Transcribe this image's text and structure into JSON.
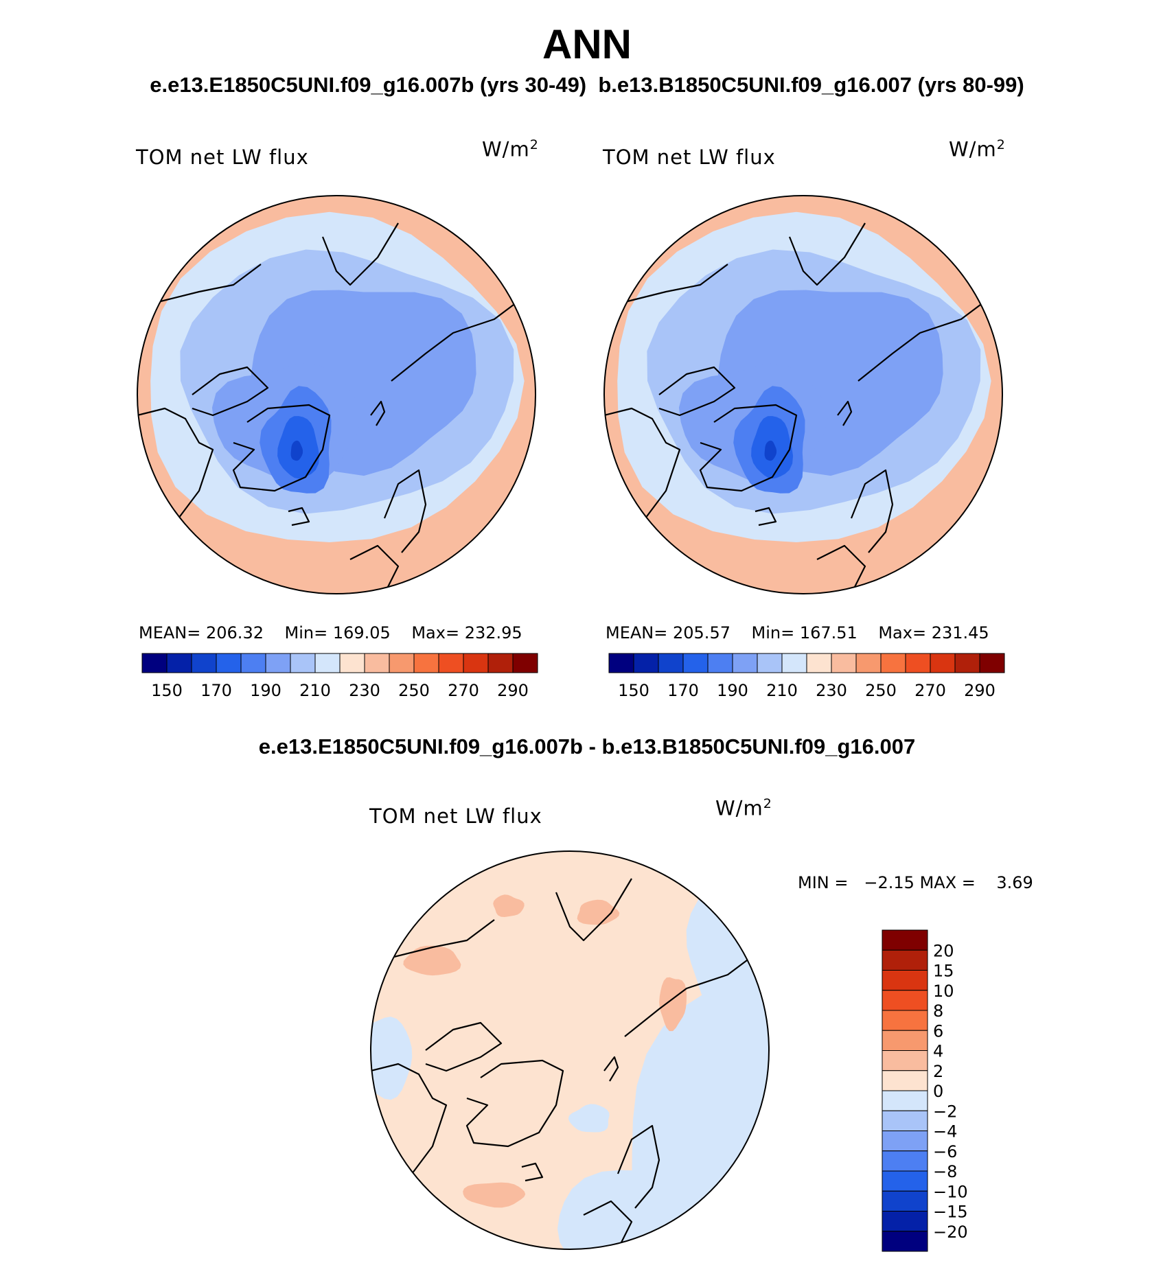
{
  "title": "ANN",
  "top_subtitle_left": "e.e13.E1850C5UNI.f09_g16.007b (yrs 30-49)",
  "top_subtitle_right": "b.e13.B1850C5UNI.f09_g16.007 (yrs 80-99)",
  "diff_subtitle": "e.e13.E1850C5UNI.f09_g16.007b - b.e13.B1850C5UNI.f09_g16.007",
  "colors": {
    "abs_scale": [
      "#00007f",
      "#0421a8",
      "#1043cc",
      "#2462ea",
      "#4d7ff2",
      "#7ea1f5",
      "#a9c4f8",
      "#d4e6fb",
      "#fde3d0",
      "#f9bc9f",
      "#f7996e",
      "#f7733f",
      "#ee4f22",
      "#d93511",
      "#b0200a",
      "#7f0000"
    ],
    "diff_scale": [
      "#00007f",
      "#0421a8",
      "#1043cc",
      "#2462ea",
      "#4d7ff2",
      "#7ea1f5",
      "#a9c4f8",
      "#d4e6fb",
      "#fde3d0",
      "#f9bc9f",
      "#f7996e",
      "#f7733f",
      "#ee4f22",
      "#d93511",
      "#b0200a",
      "#7f0000"
    ],
    "coast": "#000000"
  },
  "chart_data": [
    {
      "type": "heatmap",
      "title": "TOM net LW flux",
      "units_base": "W/m",
      "units_exp": "2",
      "projection": "north polar stereographic",
      "mean_label": "MEAN=",
      "mean": "206.32",
      "min_label": "Min=",
      "min": "169.05",
      "max_label": "Max=",
      "max": "232.95",
      "contour_levels": [
        150,
        160,
        170,
        180,
        190,
        200,
        210,
        220,
        230,
        240,
        250,
        260,
        270,
        280,
        290
      ],
      "colorbar_ticks": [
        "150",
        "170",
        "190",
        "210",
        "230",
        "250",
        "270",
        "290"
      ]
    },
    {
      "type": "heatmap",
      "title": "TOM net LW flux",
      "units_base": "W/m",
      "units_exp": "2",
      "projection": "north polar stereographic",
      "mean_label": "MEAN=",
      "mean": "205.57",
      "min_label": "Min=",
      "min": "167.51",
      "max_label": "Max=",
      "max": "231.45",
      "contour_levels": [
        150,
        160,
        170,
        180,
        190,
        200,
        210,
        220,
        230,
        240,
        250,
        260,
        270,
        280,
        290
      ],
      "colorbar_ticks": [
        "150",
        "170",
        "190",
        "210",
        "230",
        "250",
        "270",
        "290"
      ]
    },
    {
      "type": "heatmap",
      "title": "TOM net LW flux",
      "units_base": "W/m",
      "units_exp": "2",
      "projection": "north polar stereographic",
      "min_label": "MIN =",
      "min": "−2.15",
      "max_label": "MAX =",
      "max": "3.69",
      "contour_levels": [
        -20,
        -15,
        -10,
        -8,
        -6,
        -4,
        -2,
        0,
        2,
        4,
        6,
        8,
        10,
        15,
        20
      ],
      "colorbar_ticks": [
        "20",
        "15",
        "10",
        "8",
        "6",
        "4",
        "2",
        "0",
        "−2",
        "−4",
        "−6",
        "−8",
        "−10",
        "−15",
        "−20"
      ]
    }
  ]
}
